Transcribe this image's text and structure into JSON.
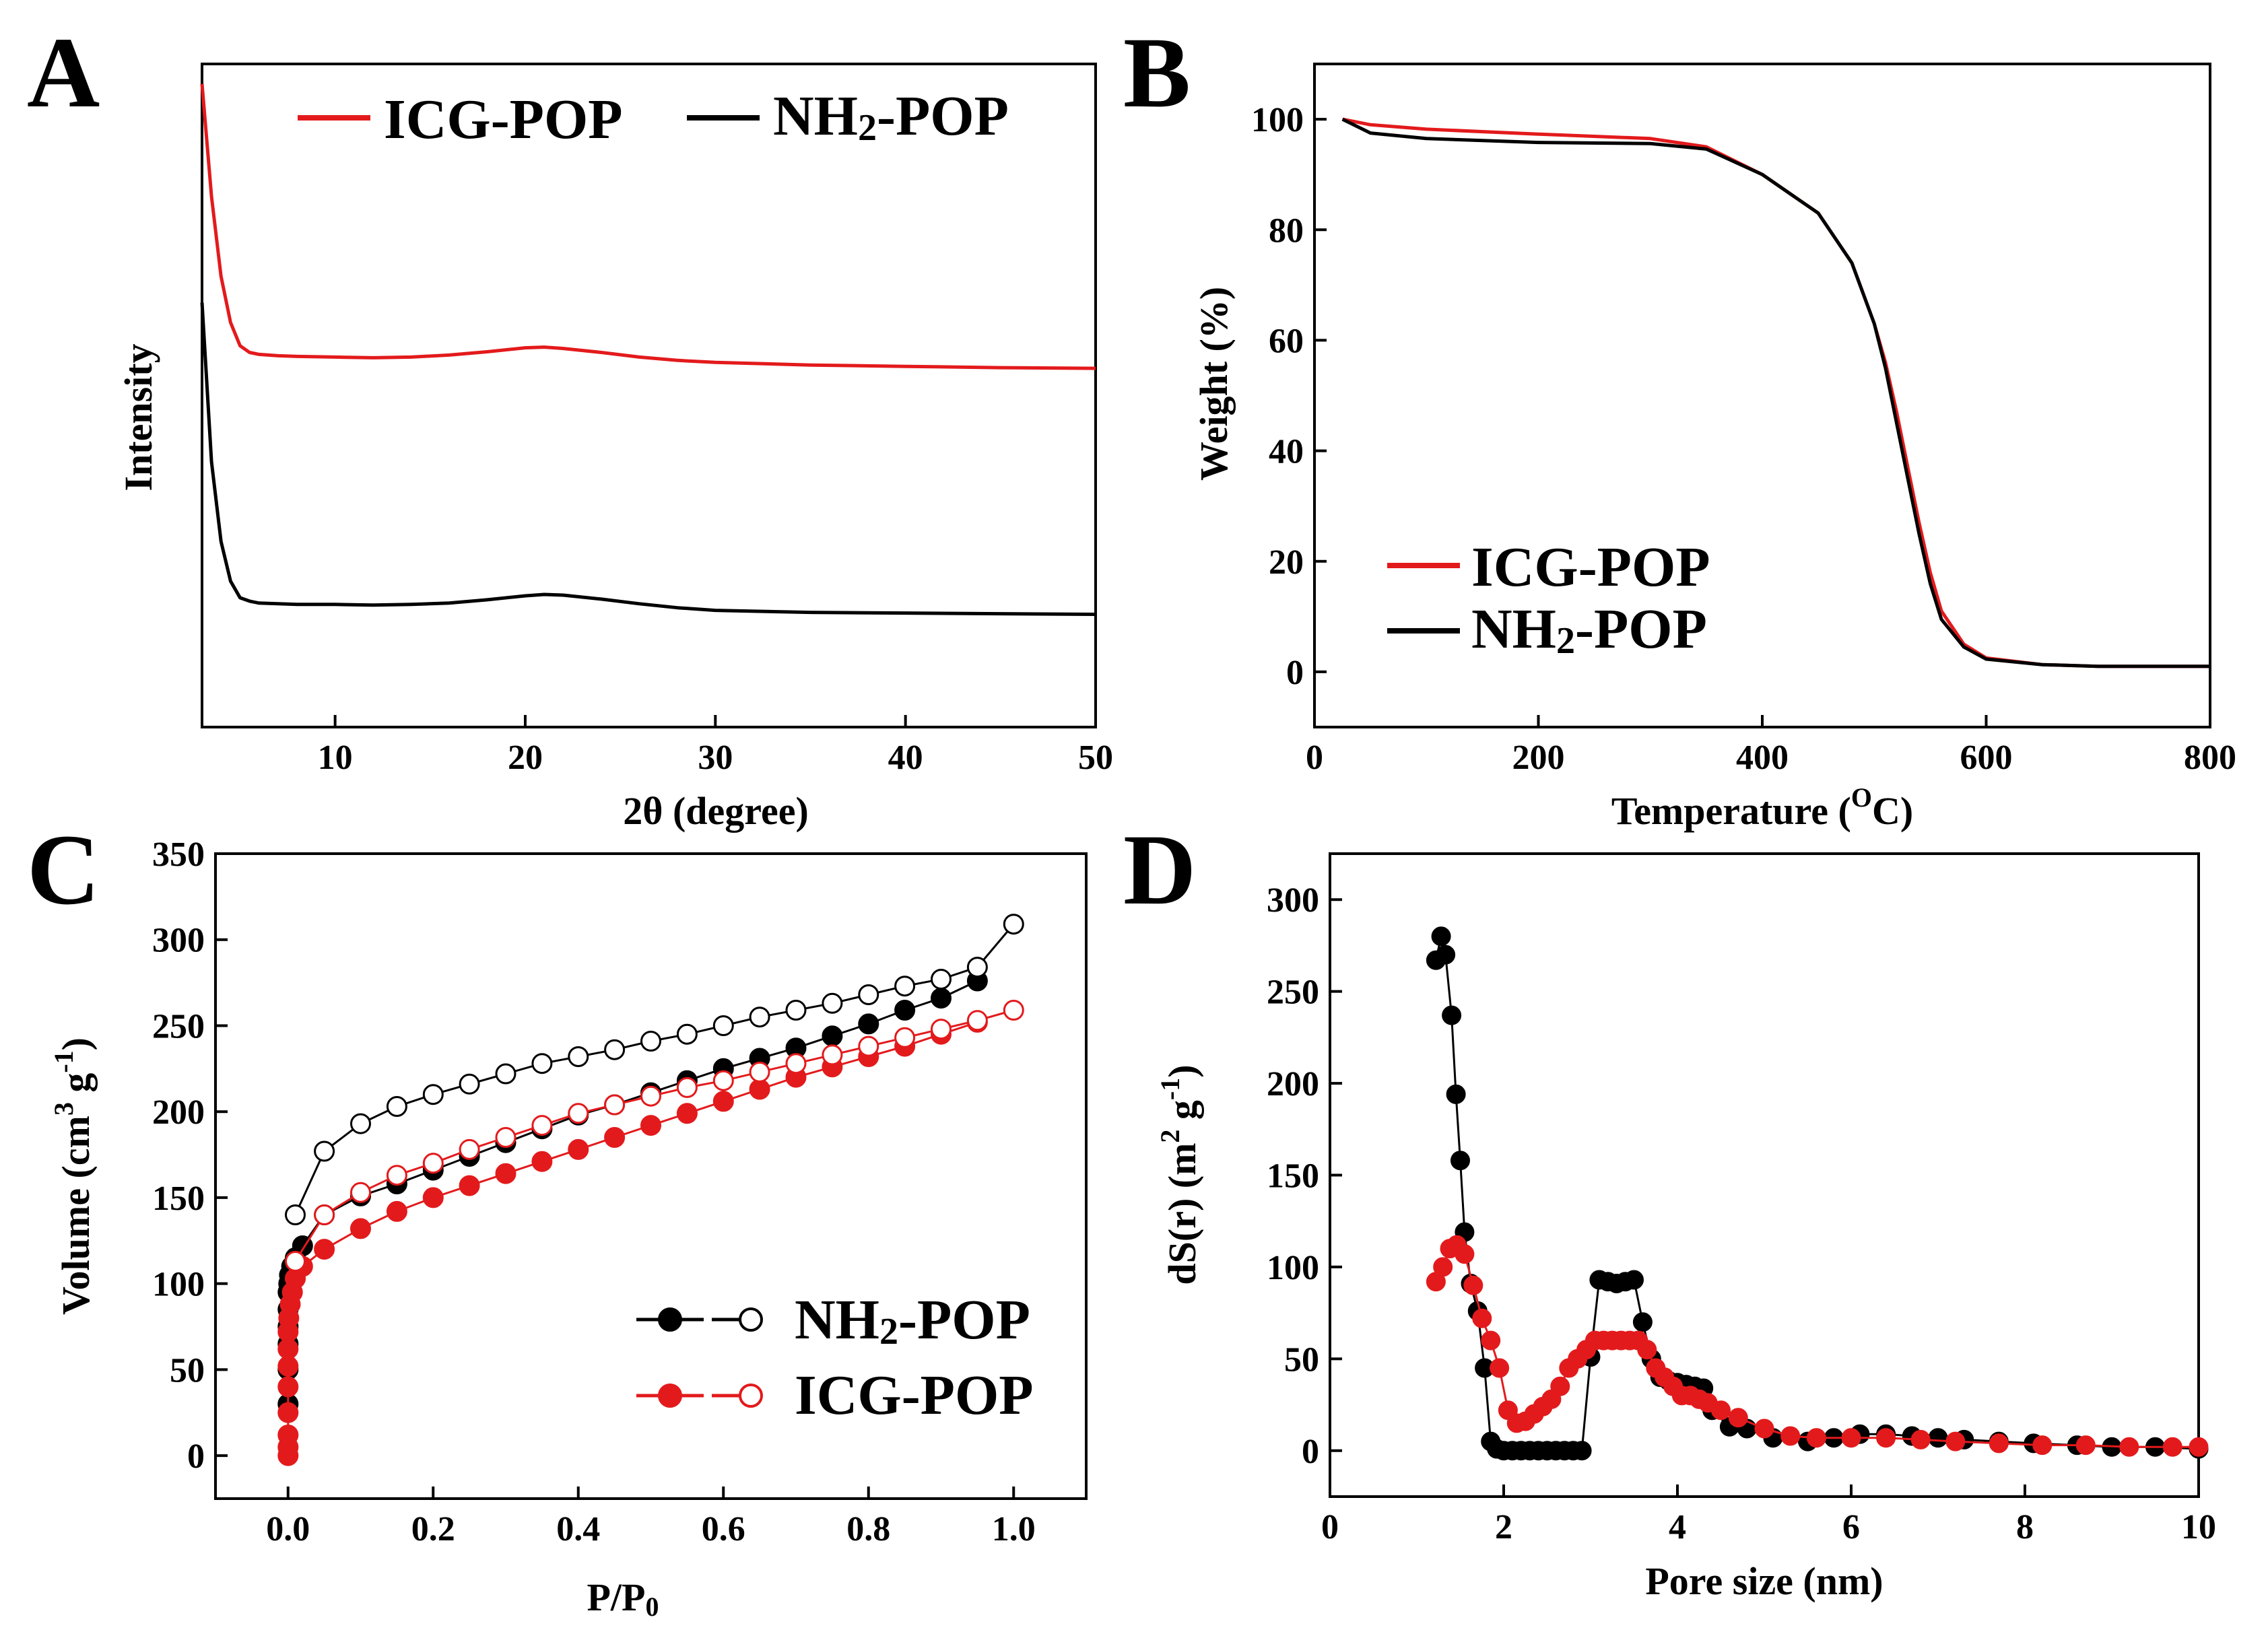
{
  "panels": {
    "a": {
      "label": "A"
    },
    "b": {
      "label": "B"
    },
    "c": {
      "label": "C"
    },
    "d": {
      "label": "D"
    }
  },
  "colors": {
    "icg": "#e31a1c",
    "nh2": "#000000"
  },
  "chart_data": [
    {
      "panel": "A",
      "type": "line",
      "title": "",
      "xlabel": "2θ (degree)",
      "ylabel": "Intensity",
      "xlim": [
        3,
        50
      ],
      "ylim": [
        0,
        1
      ],
      "xticks": [
        10,
        20,
        30,
        40,
        50
      ],
      "yticks_shown": false,
      "legend": {
        "placement": "top",
        "entries": [
          "ICG-POP",
          "NH",
          "2",
          "-POP"
        ]
      },
      "series": [
        {
          "name": "ICG-POP",
          "color": "#e31a1c",
          "x": [
            3.0,
            3.5,
            4.0,
            4.5,
            5.0,
            5.5,
            6.0,
            7,
            8,
            10,
            12,
            14,
            16,
            18,
            20,
            21,
            22,
            24,
            26,
            28,
            30,
            35,
            40,
            45,
            50
          ],
          "y": [
            0.97,
            0.8,
            0.68,
            0.61,
            0.575,
            0.565,
            0.562,
            0.56,
            0.559,
            0.558,
            0.557,
            0.558,
            0.561,
            0.566,
            0.572,
            0.573,
            0.571,
            0.565,
            0.558,
            0.553,
            0.55,
            0.546,
            0.544,
            0.542,
            0.541
          ]
        },
        {
          "name": "NH2-POP",
          "color": "#000000",
          "x": [
            3.0,
            3.5,
            4.0,
            4.5,
            5.0,
            5.5,
            6.0,
            7,
            8,
            10,
            12,
            14,
            16,
            18,
            20,
            21,
            22,
            24,
            26,
            28,
            30,
            35,
            40,
            45,
            50
          ],
          "y": [
            0.64,
            0.4,
            0.28,
            0.22,
            0.195,
            0.19,
            0.187,
            0.186,
            0.185,
            0.185,
            0.184,
            0.185,
            0.187,
            0.192,
            0.198,
            0.2,
            0.199,
            0.193,
            0.186,
            0.18,
            0.176,
            0.173,
            0.172,
            0.171,
            0.17
          ]
        }
      ]
    },
    {
      "panel": "B",
      "type": "line",
      "title": "",
      "xlabel": "Temperature (",
      "xlabel_sup": "O",
      "xlabel_end": "C)",
      "ylabel": "Weight (%)",
      "xlim": [
        0,
        800
      ],
      "ylim": [
        -10,
        110
      ],
      "xticks": [
        0,
        200,
        400,
        600,
        800
      ],
      "yticks": [
        0,
        20,
        40,
        60,
        80,
        100
      ],
      "legend": {
        "placement": "bottom-left",
        "entries": [
          "ICG-POP",
          "NH",
          "2",
          "-POP"
        ]
      },
      "series": [
        {
          "name": "ICG-POP",
          "color": "#e31a1c",
          "x": [
            25,
            50,
            100,
            200,
            300,
            350,
            400,
            450,
            480,
            500,
            510,
            520,
            530,
            540,
            550,
            560,
            580,
            600,
            650,
            700,
            800
          ],
          "y": [
            100,
            99,
            98.2,
            97.3,
            96.5,
            95,
            90,
            83,
            74,
            63,
            56,
            47,
            37,
            27,
            18,
            11,
            5,
            2.5,
            1.3,
            1,
            1
          ]
        },
        {
          "name": "NH2-POP",
          "color": "#000000",
          "x": [
            25,
            50,
            100,
            200,
            300,
            350,
            400,
            450,
            480,
            500,
            510,
            520,
            530,
            540,
            550,
            560,
            580,
            600,
            650,
            700,
            800
          ],
          "y": [
            100,
            97.5,
            96.5,
            95.8,
            95.6,
            94.6,
            90,
            83,
            74,
            63,
            55,
            45,
            35,
            25,
            16,
            9.5,
            4.5,
            2.3,
            1.3,
            1,
            1
          ]
        }
      ]
    },
    {
      "panel": "C",
      "type": "scatter",
      "title": "",
      "xlabel": "P/P",
      "xlabel_sub": "0",
      "ylabel": "Volume (cm",
      "ylabel_sup1": "3",
      "ylabel_mid": " g",
      "ylabel_sup2": "-1",
      "ylabel_end": ")",
      "xlim": [
        -0.1,
        1.1
      ],
      "ylim": [
        -25,
        350
      ],
      "xticks": [
        0.0,
        0.2,
        0.4,
        0.6,
        0.8,
        1.0
      ],
      "xtick_labels": [
        "0.0",
        "0.2",
        "0.4",
        "0.6",
        "0.8",
        "1.0"
      ],
      "yticks": [
        0,
        50,
        100,
        150,
        200,
        250,
        300,
        350
      ],
      "legend": {
        "placement": "bottom-right",
        "entries": [
          "NH",
          "2",
          "-POP",
          "ICG-POP"
        ]
      },
      "series": [
        {
          "name": "NH2-POP adsorption",
          "color": "#000000",
          "filled": true,
          "x": [
            0.0,
            0.0,
            0.0,
            0.0,
            0.0,
            0.0,
            0.001,
            0.002,
            0.005,
            0.01,
            0.02,
            0.05,
            0.1,
            0.15,
            0.2,
            0.25,
            0.3,
            0.35,
            0.4,
            0.45,
            0.5,
            0.55,
            0.6,
            0.65,
            0.7,
            0.75,
            0.8,
            0.85,
            0.9,
            0.95
          ],
          "y": [
            30,
            50,
            65,
            75,
            85,
            95,
            100,
            105,
            110,
            115,
            122,
            140,
            151,
            158,
            166,
            174,
            182,
            190,
            198,
            204,
            211,
            218,
            225,
            231,
            237,
            244,
            251,
            259,
            266,
            276
          ]
        },
        {
          "name": "NH2-POP desorption",
          "color": "#000000",
          "filled": false,
          "x": [
            1.0,
            0.95,
            0.9,
            0.85,
            0.8,
            0.75,
            0.7,
            0.65,
            0.6,
            0.55,
            0.5,
            0.45,
            0.4,
            0.35,
            0.3,
            0.25,
            0.2,
            0.15,
            0.1,
            0.05,
            0.01
          ],
          "y": [
            309,
            284,
            277,
            273,
            268,
            263,
            259,
            255,
            250,
            245,
            241,
            236,
            232,
            228,
            222,
            216,
            210,
            203,
            193,
            177,
            140
          ]
        },
        {
          "name": "ICG-POP adsorption",
          "color": "#e31a1c",
          "filled": true,
          "x": [
            0.0,
            0.0,
            0.0,
            0.0,
            0.0,
            0.0,
            0.0,
            0.0,
            0.001,
            0.003,
            0.006,
            0.01,
            0.02,
            0.05,
            0.1,
            0.15,
            0.2,
            0.25,
            0.3,
            0.35,
            0.4,
            0.45,
            0.5,
            0.55,
            0.6,
            0.65,
            0.7,
            0.75,
            0.8,
            0.85,
            0.9,
            0.95
          ],
          "y": [
            0,
            5,
            12,
            25,
            40,
            52,
            62,
            72,
            80,
            88,
            95,
            103,
            110,
            120,
            132,
            142,
            150,
            157,
            164,
            171,
            178,
            185,
            192,
            199,
            206,
            213,
            220,
            226,
            232,
            238,
            245,
            252
          ]
        },
        {
          "name": "ICG-POP desorption",
          "color": "#e31a1c",
          "filled": false,
          "x": [
            1.0,
            0.95,
            0.9,
            0.85,
            0.8,
            0.75,
            0.7,
            0.65,
            0.6,
            0.55,
            0.5,
            0.45,
            0.4,
            0.35,
            0.3,
            0.25,
            0.2,
            0.15,
            0.1,
            0.05,
            0.01
          ],
          "y": [
            259,
            253,
            248,
            243,
            238,
            233,
            228,
            223,
            218,
            214,
            209,
            204,
            199,
            192,
            185,
            178,
            170,
            163,
            153,
            140,
            113
          ]
        }
      ]
    },
    {
      "panel": "D",
      "type": "line",
      "title": "",
      "xlabel": "Pore size (nm)",
      "ylabel": "dS(r) (m",
      "ylabel_sup1": "2",
      "ylabel_mid": " g",
      "ylabel_sup2": "-1",
      "ylabel_end": ")",
      "xlim": [
        0,
        10
      ],
      "ylim": [
        -25,
        325
      ],
      "xticks": [
        0,
        2,
        4,
        6,
        8,
        10
      ],
      "yticks": [
        0,
        50,
        100,
        150,
        200,
        250,
        300
      ],
      "legend": null,
      "series": [
        {
          "name": "NH2-POP",
          "color": "#000000",
          "markers": true,
          "x": [
            1.22,
            1.28,
            1.33,
            1.4,
            1.45,
            1.5,
            1.55,
            1.62,
            1.7,
            1.78,
            1.85,
            1.92,
            2.0,
            2.1,
            2.2,
            2.3,
            2.4,
            2.5,
            2.6,
            2.7,
            2.8,
            2.9,
            3.0,
            3.1,
            3.2,
            3.3,
            3.4,
            3.5,
            3.6,
            3.7,
            3.8,
            3.9,
            4.0,
            4.1,
            4.2,
            4.3,
            4.4,
            4.6,
            4.8,
            5.1,
            5.5,
            5.8,
            6.1,
            6.4,
            6.7,
            7.0,
            7.3,
            7.7,
            8.1,
            8.6,
            9.0,
            9.5,
            10.0
          ],
          "y": [
            267,
            280,
            270,
            237,
            194,
            158,
            119,
            91,
            76,
            45,
            5,
            1,
            0,
            0,
            0,
            0,
            0,
            0,
            0,
            0,
            0,
            0,
            51,
            93,
            92,
            91,
            92,
            93,
            70,
            50,
            40,
            38,
            37,
            36,
            35,
            34,
            22,
            13,
            12,
            7,
            5,
            7,
            9,
            9,
            8,
            7,
            6,
            5,
            4,
            3,
            2,
            2,
            1
          ]
        },
        {
          "name": "ICG-POP",
          "color": "#e31a1c",
          "markers": true,
          "x": [
            1.22,
            1.3,
            1.38,
            1.46,
            1.55,
            1.65,
            1.75,
            1.85,
            1.95,
            2.05,
            2.15,
            2.25,
            2.35,
            2.45,
            2.55,
            2.65,
            2.75,
            2.85,
            2.95,
            3.05,
            3.15,
            3.25,
            3.35,
            3.45,
            3.55,
            3.65,
            3.75,
            3.85,
            3.95,
            4.05,
            4.15,
            4.25,
            4.35,
            4.5,
            4.7,
            5.0,
            5.3,
            5.6,
            6.0,
            6.4,
            6.8,
            7.2,
            7.7,
            8.2,
            8.7,
            9.2,
            9.7,
            10.0
          ],
          "y": [
            92,
            100,
            110,
            112,
            107,
            90,
            72,
            60,
            45,
            22,
            15,
            16,
            20,
            24,
            28,
            35,
            45,
            50,
            55,
            60,
            60,
            60,
            60,
            60,
            60,
            55,
            45,
            40,
            35,
            30,
            30,
            28,
            26,
            22,
            18,
            12,
            8,
            7,
            7,
            7,
            6,
            5,
            4,
            3,
            3,
            2,
            2,
            2
          ]
        }
      ]
    }
  ]
}
